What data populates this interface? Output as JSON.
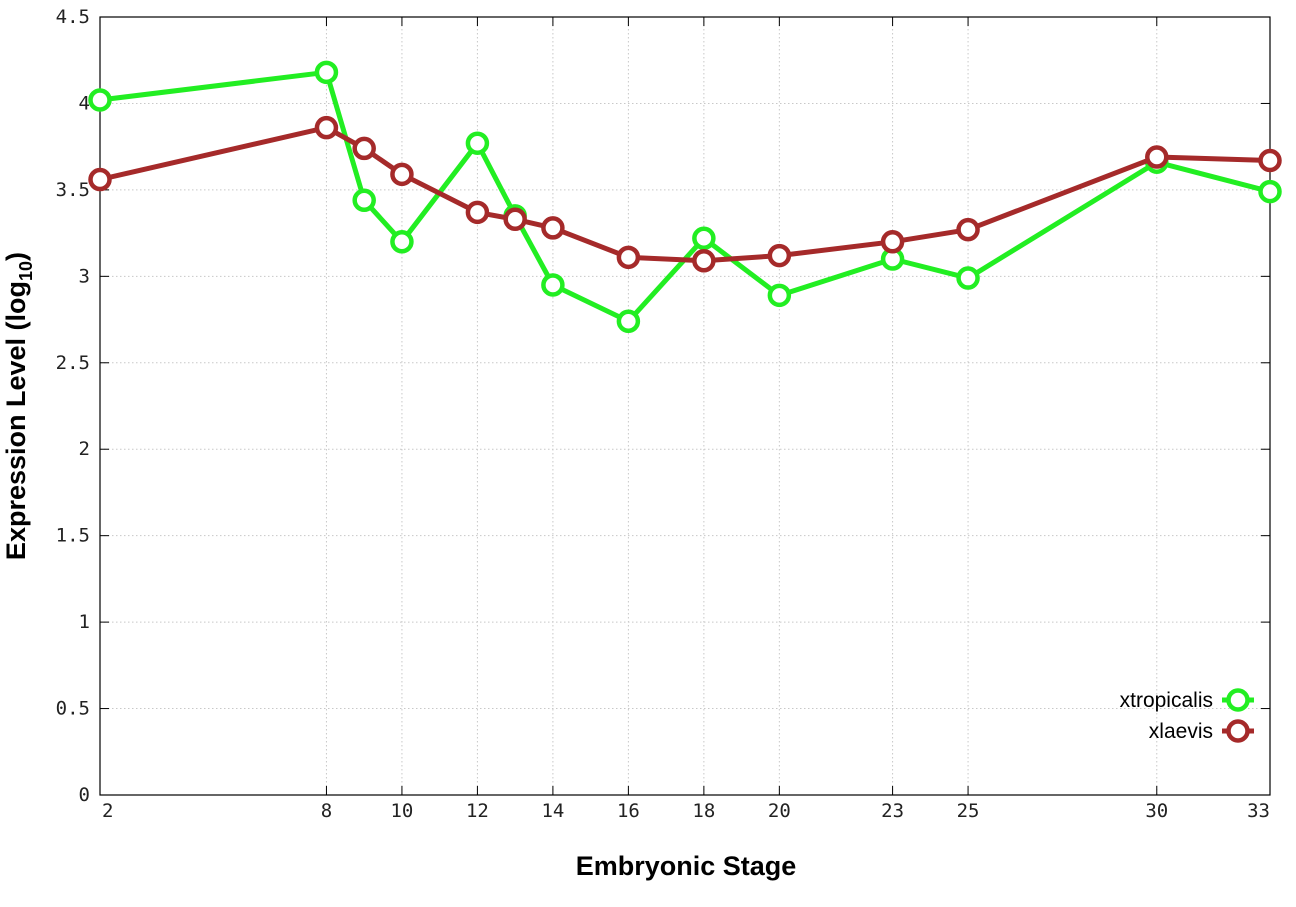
{
  "chart_data": {
    "type": "line",
    "xlabel": "Embryonic Stage",
    "ylabel": "Expression Level (log",
    "ylabel_sub": "10",
    "ylabel_close": ")",
    "xlim": [
      2,
      33
    ],
    "ylim": [
      0,
      4.5
    ],
    "x_ticks": [
      2,
      8,
      10,
      12,
      14,
      16,
      18,
      20,
      23,
      25,
      30,
      33
    ],
    "y_ticks": [
      0,
      0.5,
      1,
      1.5,
      2,
      2.5,
      3,
      3.5,
      4,
      4.5
    ],
    "x_tick_labels": [
      "2",
      "8",
      "10",
      "12",
      "14",
      "16",
      "18",
      "20",
      "23",
      "25",
      "30",
      "33"
    ],
    "y_tick_labels": [
      "0",
      "0.5",
      "1",
      "1.5",
      "2",
      "2.5",
      "3",
      "3.5",
      "4",
      "4.5"
    ],
    "grid": true,
    "legend_position": "bottom-right",
    "x": [
      2,
      8,
      9,
      10,
      12,
      13,
      14,
      16,
      18,
      20,
      23,
      25,
      30,
      33
    ],
    "series": [
      {
        "name": "xtropicalis",
        "color": "#22ee22",
        "values": [
          4.02,
          4.18,
          3.44,
          3.2,
          3.77,
          3.35,
          2.95,
          2.74,
          3.22,
          2.89,
          3.1,
          2.99,
          3.66,
          3.49
        ]
      },
      {
        "name": "xlaevis",
        "color": "#a52a2a",
        "values": [
          3.56,
          3.86,
          3.74,
          3.59,
          3.37,
          3.33,
          3.28,
          3.11,
          3.09,
          3.12,
          3.2,
          3.27,
          3.69,
          3.67
        ]
      }
    ]
  }
}
